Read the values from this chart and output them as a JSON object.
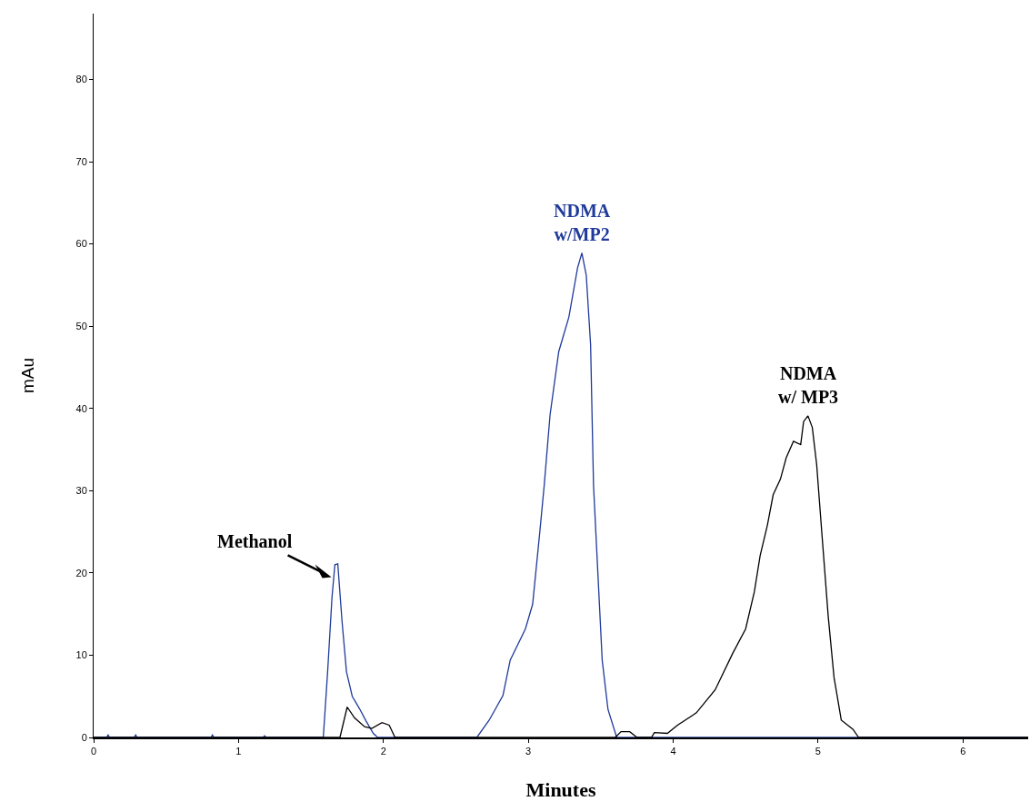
{
  "chart_data": {
    "type": "line",
    "xlabel": "Minutes",
    "ylabel": "mAu",
    "xlim": [
      0,
      6.45
    ],
    "xticks": [
      0,
      1,
      2,
      3,
      4,
      5,
      6
    ],
    "ylim": [
      0,
      88
    ],
    "yticks": [
      0,
      10,
      20,
      30,
      40,
      50,
      60,
      70,
      80
    ],
    "grid": false,
    "marker": "none",
    "line_style": "solid",
    "series": [
      {
        "color": "#1f3a9a",
        "x": [
          0,
          0.09,
          0.1,
          0.11,
          0.28,
          0.29,
          0.3,
          0.81,
          0.82,
          0.83,
          1.17,
          1.18,
          1.19,
          1.585,
          1.615,
          1.645,
          1.665,
          1.685,
          1.715,
          1.745,
          1.785,
          1.835,
          1.88,
          1.93,
          1.96,
          2.645,
          2.73,
          2.825,
          2.875,
          2.98,
          3.03,
          3.08,
          3.11,
          3.15,
          3.21,
          3.28,
          3.34,
          3.37,
          3.4,
          3.43,
          3.45,
          3.48,
          3.51,
          3.55,
          3.61,
          6.45
        ],
        "values": [
          0,
          0,
          0.3,
          0,
          0,
          0.3,
          0,
          0,
          0.3,
          0,
          0,
          0.2,
          0,
          0,
          8,
          17,
          21,
          21.1,
          14,
          8,
          5,
          3.5,
          2,
          0.5,
          0,
          0,
          2.1,
          5.1,
          9.4,
          13.2,
          16.2,
          25.1,
          30.7,
          39.2,
          46.9,
          51.1,
          57.1,
          58.9,
          56.2,
          47.7,
          30.7,
          20,
          9.4,
          3.4,
          0,
          0
        ]
      },
      {
        "color": "#000000",
        "x": [
          0,
          1.7,
          1.75,
          1.8,
          1.87,
          1.92,
          1.99,
          2.04,
          2.08,
          3.6,
          3.64,
          3.7,
          3.75,
          3.85,
          3.87,
          3.96,
          4.03,
          4.16,
          4.29,
          4.41,
          4.5,
          4.56,
          4.6,
          4.65,
          4.69,
          4.74,
          4.78,
          4.83,
          4.88,
          4.9,
          4.93,
          4.96,
          4.99,
          5.03,
          5.07,
          5.11,
          5.16,
          5.24,
          5.28,
          6.45
        ],
        "values": [
          0,
          0,
          3.7,
          2.4,
          1.3,
          1.1,
          1.8,
          1.5,
          0,
          0,
          0.7,
          0.7,
          0,
          0,
          0.6,
          0.5,
          1.5,
          3,
          5.8,
          10.2,
          13.2,
          17.7,
          22.1,
          25.8,
          29.5,
          31.4,
          34,
          36,
          35.6,
          38.4,
          39.1,
          37.7,
          33.2,
          23.9,
          14.7,
          7.3,
          2.1,
          1,
          0,
          0
        ]
      }
    ],
    "annotations": [
      {
        "text": "Methanol",
        "x": 1.66,
        "y": 19.5
      },
      {
        "text": "NDMA\nw/MP2",
        "x": 3.37,
        "y": 58.9
      },
      {
        "text": "NDMA\nw/ MP3",
        "x": 4.93,
        "y": 39.1
      }
    ]
  }
}
